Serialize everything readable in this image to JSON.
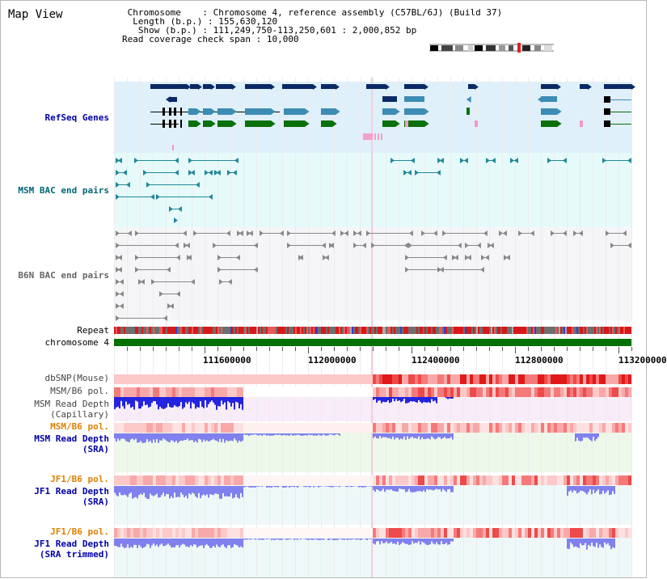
{
  "app": {
    "title": "Map View"
  },
  "header": {
    "chromosome_label": "Chromosome",
    "chromosome_value": "Chromosome 4, reference assembly (C57BL/6J) (Build 37)",
    "length_label": "Length (b.p.)",
    "length_value": "155,630,120",
    "show_label": "Show (b.p.)",
    "show_value": "111,249,750-113,250,601 : 2,000,852 bp",
    "span_label": "Read coverage check span",
    "span_value": "10,000"
  },
  "tracks": {
    "refseq": "RefSeq Genes",
    "msm_bac": "MSM BAC end pairs",
    "b6n_bac": "B6N BAC end pairs",
    "repeat": "Repeat",
    "chromosome": "chromosome 4",
    "dbsnp": "dbSNP(Mouse)",
    "msm_pol1": "MSM/B6 pol.",
    "msm_depth1_a": "MSM Read Depth",
    "msm_depth1_b": "(Capillary)",
    "msm_pol2": "MSM/B6 pol.",
    "msm_depth2_a": "MSM Read Depth",
    "msm_depth2_b": "(SRA)",
    "jf1_pol1": "JF1/B6 pol.",
    "jf1_depth1_a": "JF1 Read Depth",
    "jf1_depth1_b": "(SRA)",
    "jf1_pol2": "JF1/B6 pol.",
    "jf1_depth2_a": "JF1 Read Depth",
    "jf1_depth2_b": "(SRA trimmed)"
  },
  "axis": {
    "ticks": [
      "111600000",
      "112000000",
      "112400000",
      "112800000",
      "113200000"
    ]
  },
  "colors": {
    "refseq_bg": "#dff0fa",
    "msm_bac_bg": "#e6fafa",
    "b6n_bac_bg": "#f5f5f8",
    "chrom": "#007000",
    "dark_gene": "#0a2a66",
    "mid_gene": "#3c8cb4",
    "green_gene": "#0a700a",
    "label_blue": "#0000aa",
    "label_teal": "#006677",
    "label_orange": "#e08000"
  }
}
